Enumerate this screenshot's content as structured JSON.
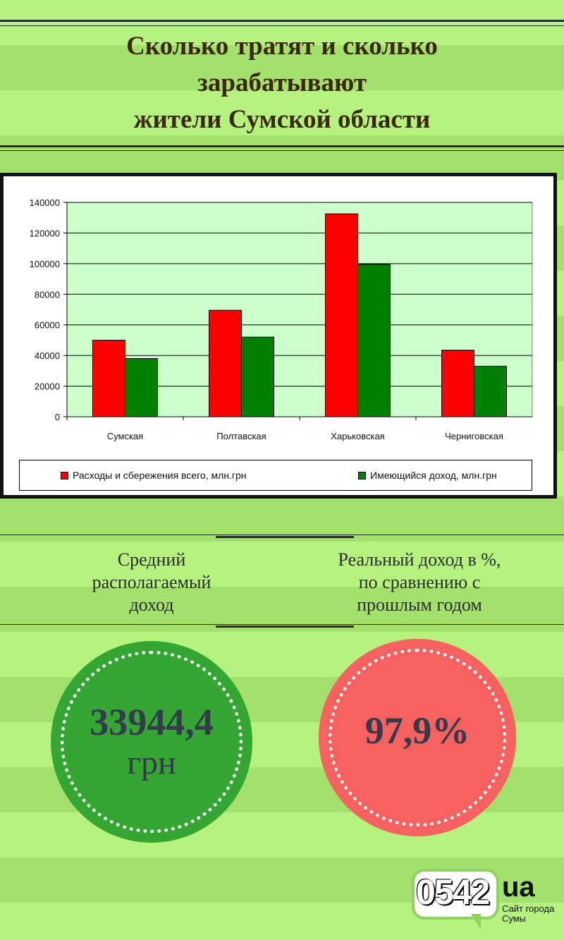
{
  "title": {
    "line1": "Сколько тратят и сколько",
    "line2": "зарабатывают",
    "line3": "жители Сумской области"
  },
  "chart_data": {
    "type": "bar",
    "categories": [
      "Сумская",
      "Полтавская",
      "Харьковская",
      "Черниговская"
    ],
    "series": [
      {
        "name": "Расходы и сбережения всего, млн.грн",
        "values": [
          50000,
          69500,
          132500,
          43500
        ],
        "color": "#ff0000"
      },
      {
        "name": "Имеющийся доход, млн.грн",
        "values": [
          38000,
          52000,
          99500,
          33000
        ],
        "color": "#008000"
      }
    ],
    "yticks": [
      "0",
      "20000",
      "40000",
      "60000",
      "80000",
      "100000",
      "120000",
      "140000"
    ],
    "ylim": [
      0,
      140000
    ],
    "plot_background": "#ccffcc",
    "grid": true,
    "legend_position": "bottom"
  },
  "stats": {
    "left_label": [
      "Средний",
      "располагаемый",
      "доход"
    ],
    "right_label": [
      "Реальный доход в %,",
      "по сравнению с",
      "прошлым годом"
    ],
    "left_value": "33944,4",
    "left_unit": "грн",
    "right_value": "97,9%",
    "left_color": "#34a632",
    "right_color": "#f7615f"
  },
  "logo": {
    "number": "0542",
    "domain": "ua",
    "subtitle": "Сайт города Сумы"
  }
}
